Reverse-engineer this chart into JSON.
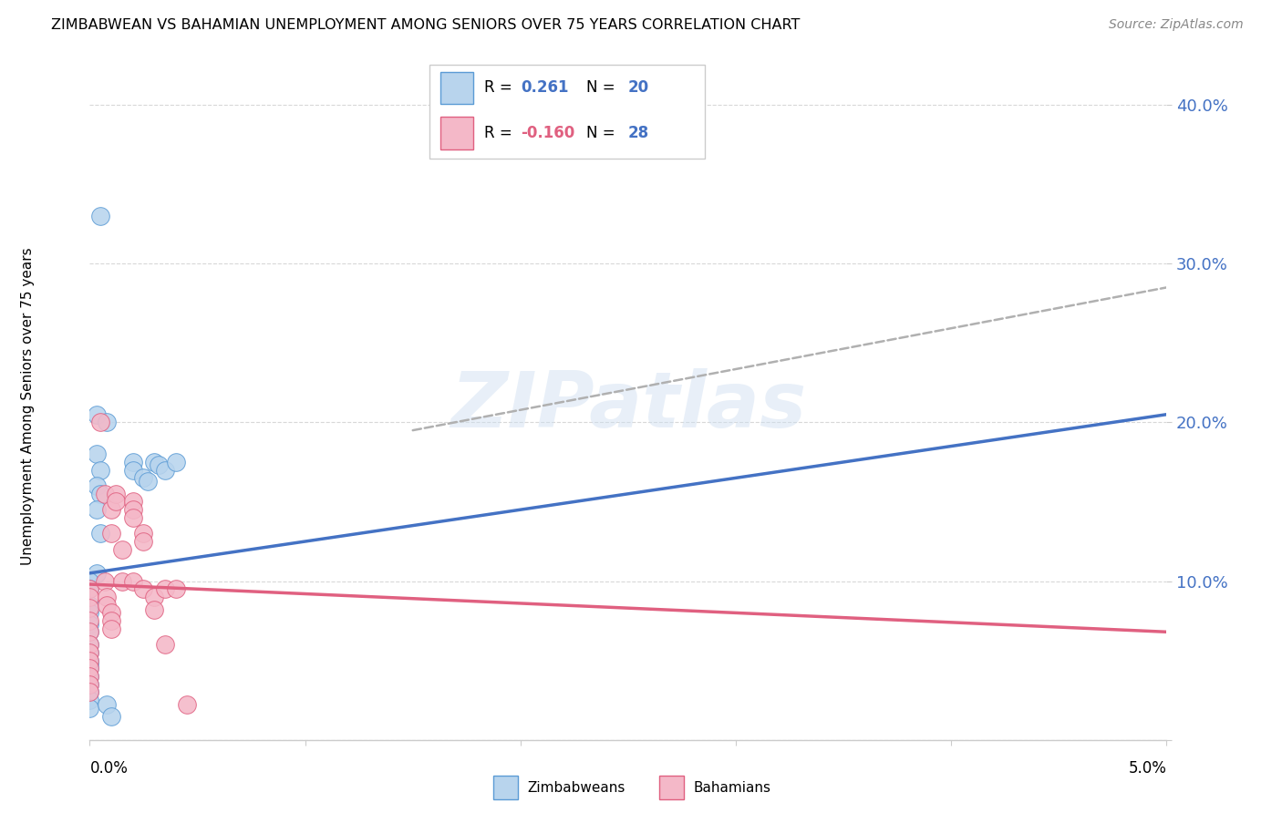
{
  "title": "ZIMBABWEAN VS BAHAMIAN UNEMPLOYMENT AMONG SENIORS OVER 75 YEARS CORRELATION CHART",
  "source": "Source: ZipAtlas.com",
  "ylabel": "Unemployment Among Seniors over 75 years",
  "xmin": 0.0,
  "xmax": 0.05,
  "ymin": 0.0,
  "ymax": 0.42,
  "yticks": [
    0.0,
    0.1,
    0.2,
    0.3,
    0.4
  ],
  "ytick_labels": [
    "",
    "10.0%",
    "20.0%",
    "30.0%",
    "40.0%"
  ],
  "xticks": [
    0.0,
    0.01,
    0.02,
    0.03,
    0.04,
    0.05
  ],
  "watermark_text": "ZIPatlas",
  "zimbabwean_fill": "#b8d4ed",
  "zimbabwean_edge": "#5b9bd5",
  "bahamian_fill": "#f4b8c8",
  "bahamian_edge": "#e06080",
  "trend_zim_color": "#4472c4",
  "trend_bah_color": "#e06080",
  "trend_ext_color": "#b0b0b0",
  "background_color": "#ffffff",
  "grid_color": "#d8d8d8",
  "trend_zim_y0": 0.105,
  "trend_zim_y1": 0.205,
  "trend_bah_y0": 0.098,
  "trend_bah_y1": 0.068,
  "trend_ext_x0": 0.015,
  "trend_ext_y0": 0.195,
  "trend_ext_x1": 0.05,
  "trend_ext_y1": 0.285,
  "zimbabwean_points": [
    [
      0.0005,
      0.33
    ],
    [
      0.0003,
      0.205
    ],
    [
      0.0008,
      0.2
    ],
    [
      0.0003,
      0.18
    ],
    [
      0.0005,
      0.17
    ],
    [
      0.0003,
      0.16
    ],
    [
      0.0005,
      0.155
    ],
    [
      0.0003,
      0.145
    ],
    [
      0.0005,
      0.13
    ],
    [
      0.0003,
      0.105
    ],
    [
      0.0,
      0.1
    ],
    [
      0.0,
      0.095
    ],
    [
      0.0,
      0.085
    ],
    [
      0.0,
      0.08
    ],
    [
      0.0,
      0.073
    ],
    [
      0.0,
      0.068
    ],
    [
      0.0,
      0.06
    ],
    [
      0.0,
      0.055
    ],
    [
      0.0,
      0.05
    ],
    [
      0.0,
      0.048
    ],
    [
      0.0,
      0.045
    ],
    [
      0.0,
      0.04
    ],
    [
      0.0,
      0.035
    ],
    [
      0.0,
      0.03
    ],
    [
      0.0,
      0.025
    ],
    [
      0.0,
      0.02
    ],
    [
      0.0008,
      0.022
    ],
    [
      0.001,
      0.015
    ],
    [
      0.002,
      0.175
    ],
    [
      0.002,
      0.17
    ],
    [
      0.0025,
      0.165
    ],
    [
      0.0027,
      0.163
    ],
    [
      0.003,
      0.175
    ],
    [
      0.0032,
      0.173
    ],
    [
      0.0035,
      0.17
    ],
    [
      0.004,
      0.175
    ]
  ],
  "bahamian_points": [
    [
      0.0,
      0.095
    ],
    [
      0.0,
      0.09
    ],
    [
      0.0,
      0.083
    ],
    [
      0.0,
      0.075
    ],
    [
      0.0,
      0.068
    ],
    [
      0.0,
      0.06
    ],
    [
      0.0,
      0.055
    ],
    [
      0.0,
      0.05
    ],
    [
      0.0,
      0.045
    ],
    [
      0.0,
      0.04
    ],
    [
      0.0,
      0.035
    ],
    [
      0.0,
      0.03
    ],
    [
      0.0005,
      0.2
    ],
    [
      0.0007,
      0.155
    ],
    [
      0.001,
      0.145
    ],
    [
      0.001,
      0.13
    ],
    [
      0.0012,
      0.155
    ],
    [
      0.0012,
      0.15
    ],
    [
      0.0015,
      0.12
    ],
    [
      0.0007,
      0.1
    ],
    [
      0.0008,
      0.09
    ],
    [
      0.0008,
      0.085
    ],
    [
      0.001,
      0.08
    ],
    [
      0.001,
      0.075
    ],
    [
      0.001,
      0.07
    ],
    [
      0.0015,
      0.1
    ],
    [
      0.002,
      0.15
    ],
    [
      0.002,
      0.145
    ],
    [
      0.002,
      0.14
    ],
    [
      0.0025,
      0.13
    ],
    [
      0.0025,
      0.125
    ],
    [
      0.002,
      0.1
    ],
    [
      0.0025,
      0.095
    ],
    [
      0.003,
      0.09
    ],
    [
      0.003,
      0.082
    ],
    [
      0.0035,
      0.095
    ],
    [
      0.0035,
      0.06
    ],
    [
      0.004,
      0.095
    ],
    [
      0.0045,
      0.022
    ]
  ]
}
